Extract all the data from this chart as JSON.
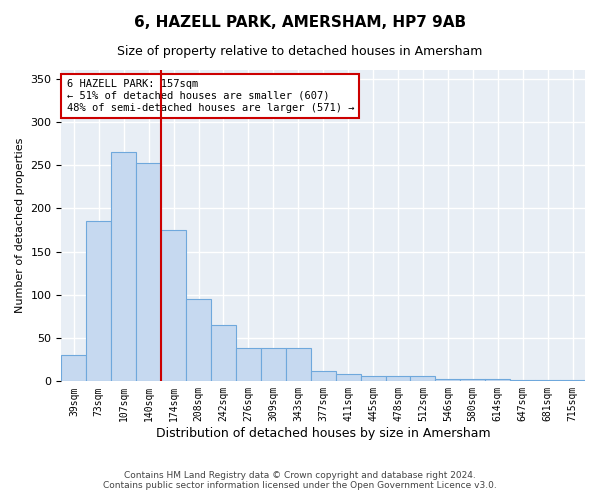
{
  "title": "6, HAZELL PARK, AMERSHAM, HP7 9AB",
  "subtitle": "Size of property relative to detached houses in Amersham",
  "xlabel": "Distribution of detached houses by size in Amersham",
  "ylabel": "Number of detached properties",
  "categories": [
    "39sqm",
    "73sqm",
    "107sqm",
    "140sqm",
    "174sqm",
    "208sqm",
    "242sqm",
    "276sqm",
    "309sqm",
    "343sqm",
    "377sqm",
    "411sqm",
    "445sqm",
    "478sqm",
    "512sqm",
    "546sqm",
    "580sqm",
    "614sqm",
    "647sqm",
    "681sqm",
    "715sqm"
  ],
  "values": [
    30,
    185,
    265,
    252,
    175,
    95,
    65,
    38,
    38,
    38,
    12,
    8,
    6,
    6,
    6,
    3,
    3,
    3,
    1,
    1,
    1
  ],
  "bar_color": "#c6d9f0",
  "bar_edge_color": "#6fa8dc",
  "vline_color": "#cc0000",
  "vline_pos": 3.5,
  "annotation_text": "6 HAZELL PARK: 157sqm\n← 51% of detached houses are smaller (607)\n48% of semi-detached houses are larger (571) →",
  "annotation_box_color": "#ffffff",
  "annotation_box_edge": "#cc0000",
  "ylim": [
    0,
    360
  ],
  "yticks": [
    0,
    50,
    100,
    150,
    200,
    250,
    300,
    350
  ],
  "plot_bg_color": "#e8eef5",
  "fig_bg_color": "#ffffff",
  "grid_color": "#ffffff",
  "footer_line1": "Contains HM Land Registry data © Crown copyright and database right 2024.",
  "footer_line2": "Contains public sector information licensed under the Open Government Licence v3.0."
}
